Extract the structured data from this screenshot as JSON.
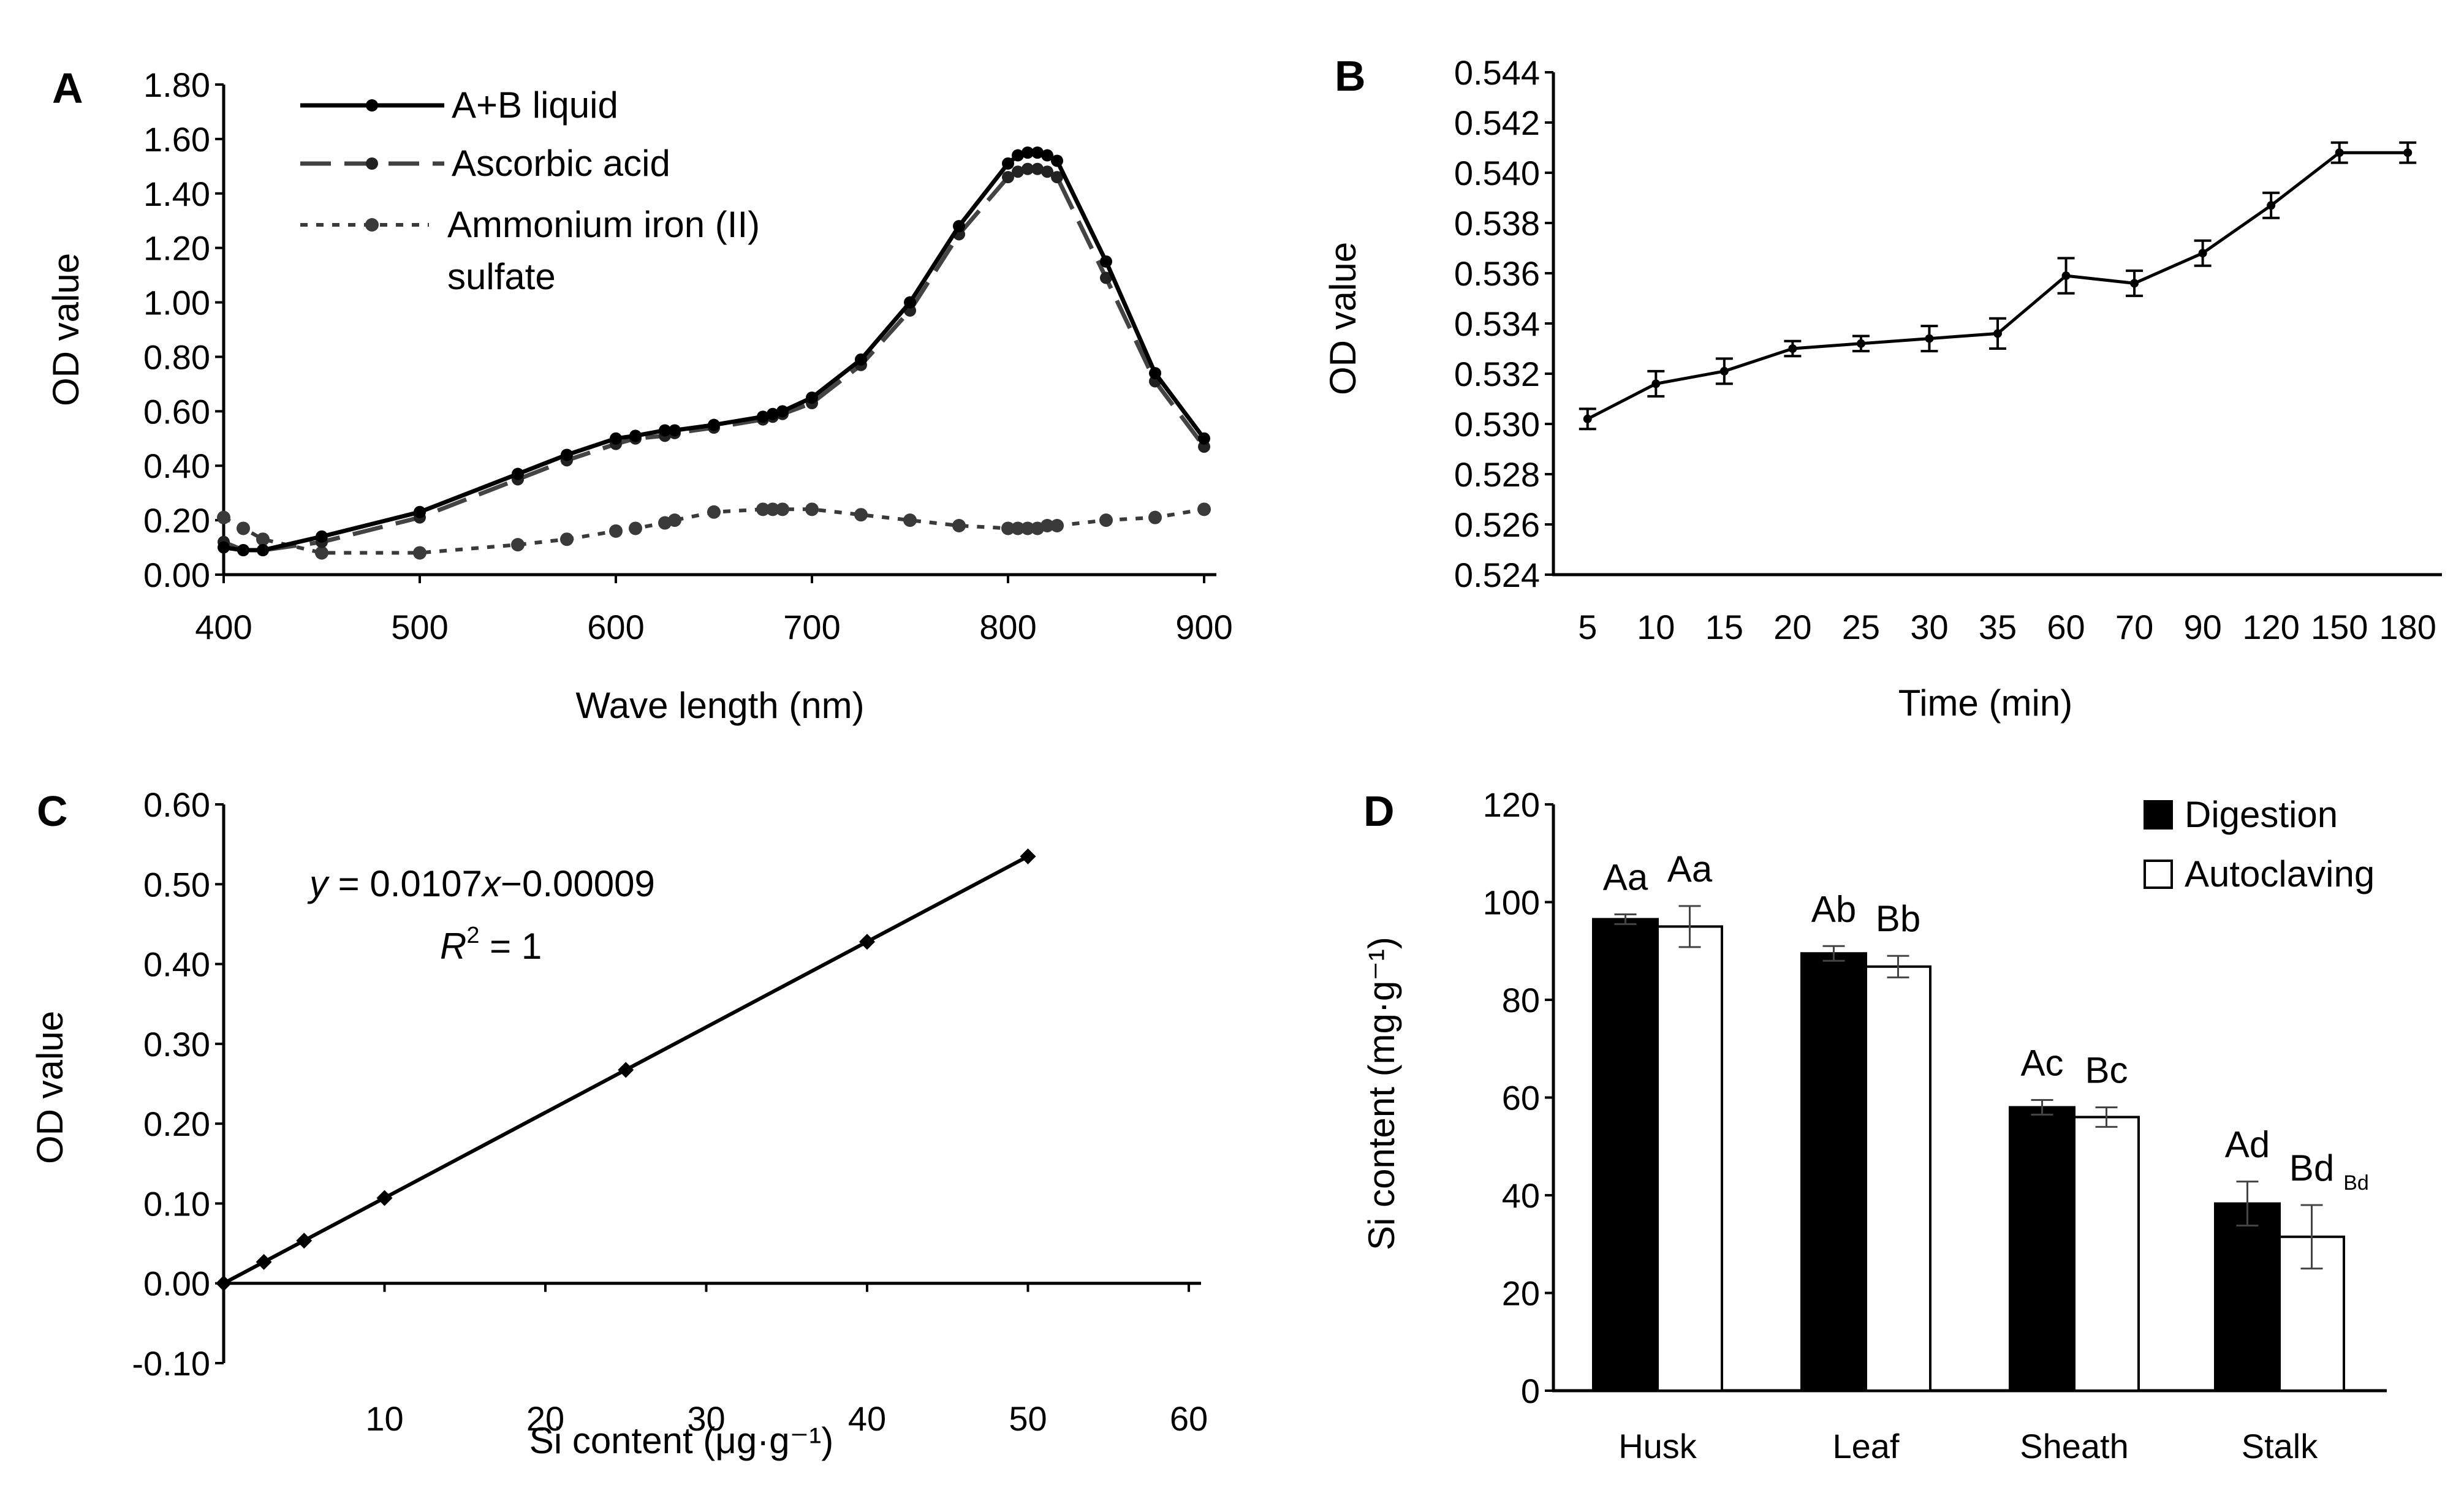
{
  "panels": [
    {
      "label": "A",
      "chart_data": {
        "type": "line",
        "xlabel": "Wave length (nm)",
        "ylabel": "OD  value",
        "xlim": [
          400,
          900
        ],
        "ylim": [
          0,
          1.8
        ],
        "x_ticks": [
          "400",
          "500",
          "600",
          "700",
          "800",
          "900"
        ],
        "y_ticks": [
          "0.00",
          "0.20",
          "0.40",
          "0.60",
          "0.80",
          "1.00",
          "1.20",
          "1.40",
          "1.60",
          "1.80"
        ],
        "legend_position": "top-left",
        "series": [
          {
            "name": "A+B liquid",
            "x": [
              400,
              410,
              420,
              450,
              500,
              550,
              575,
              600,
              610,
              625,
              630,
              650,
              675,
              680,
              685,
              700,
              725,
              750,
              775,
              800,
              805,
              810,
              815,
              820,
              825,
              850,
              875,
              900
            ],
            "y": [
              0.1,
              0.09,
              0.09,
              0.14,
              0.23,
              0.37,
              0.44,
              0.5,
              0.51,
              0.53,
              0.53,
              0.55,
              0.58,
              0.59,
              0.6,
              0.65,
              0.79,
              1.0,
              1.28,
              1.51,
              1.54,
              1.55,
              1.55,
              1.54,
              1.52,
              1.15,
              0.74,
              0.5
            ]
          },
          {
            "name": "Ascorbic  acid",
            "x": [
              400,
              410,
              420,
              450,
              500,
              550,
              575,
              600,
              610,
              625,
              630,
              650,
              675,
              680,
              685,
              700,
              725,
              750,
              775,
              800,
              805,
              810,
              815,
              820,
              825,
              850,
              875,
              900
            ],
            "y": [
              0.12,
              0.09,
              0.09,
              0.12,
              0.21,
              0.35,
              0.42,
              0.48,
              0.5,
              0.51,
              0.52,
              0.54,
              0.57,
              0.58,
              0.59,
              0.63,
              0.77,
              0.97,
              1.25,
              1.46,
              1.48,
              1.49,
              1.49,
              1.48,
              1.46,
              1.09,
              0.71,
              0.47
            ]
          },
          {
            "name": "Ammonium iron (II) sulfate",
            "name_lines": [
              "Ammonium iron (II)",
              "sulfate"
            ],
            "x": [
              400,
              410,
              420,
              450,
              500,
              550,
              575,
              600,
              610,
              625,
              630,
              650,
              675,
              680,
              685,
              700,
              725,
              750,
              775,
              800,
              805,
              810,
              815,
              820,
              825,
              850,
              875,
              900
            ],
            "y": [
              0.21,
              0.17,
              0.13,
              0.08,
              0.08,
              0.11,
              0.13,
              0.16,
              0.17,
              0.19,
              0.2,
              0.23,
              0.24,
              0.24,
              0.24,
              0.24,
              0.22,
              0.2,
              0.18,
              0.17,
              0.17,
              0.17,
              0.17,
              0.18,
              0.18,
              0.2,
              0.21,
              0.24
            ]
          }
        ]
      }
    },
    {
      "label": "B",
      "chart_data": {
        "type": "line",
        "xlabel": "Time (min)",
        "ylabel": "OD value",
        "ylim": [
          0.524,
          0.544
        ],
        "y_ticks": [
          "0.524",
          "0.526",
          "0.528",
          "0.530",
          "0.532",
          "0.534",
          "0.536",
          "0.538",
          "0.540",
          "0.542",
          "0.544"
        ],
        "categories": [
          "5",
          "10",
          "15",
          "20",
          "25",
          "30",
          "35",
          "60",
          "70",
          "90",
          "120",
          "150",
          "180"
        ],
        "series": [
          {
            "values": [
              0.5302,
              0.5316,
              0.5321,
              0.533,
              0.5332,
              0.5334,
              0.5336,
              0.5359,
              0.5356,
              0.5368,
              0.5387,
              0.5408,
              0.5408
            ],
            "error": [
              0.0004,
              0.0005,
              0.0005,
              0.0003,
              0.0003,
              0.0005,
              0.0006,
              0.0007,
              0.0005,
              0.0005,
              0.0005,
              0.0004,
              0.0004
            ]
          }
        ]
      }
    },
    {
      "label": "C",
      "chart_data": {
        "type": "scatter",
        "xlabel": "Si content (μg·g⁻¹)",
        "ylabel": "OD value",
        "xlim": [
          0,
          60
        ],
        "ylim": [
          -0.1,
          0.6
        ],
        "x_ticks": [
          "10",
          "20",
          "30",
          "40",
          "50",
          "60"
        ],
        "y_ticks": [
          "-0.10",
          "0.00",
          "0.10",
          "0.20",
          "0.30",
          "0.40",
          "0.50",
          "0.60"
        ],
        "series": [
          {
            "x": [
              0,
              2.5,
              5,
              10,
              25,
              40,
              50
            ],
            "y": [
              0.0,
              0.0267,
              0.0534,
              0.1069,
              0.2674,
              0.4279,
              0.5349
            ]
          }
        ],
        "annotations": {
          "eq_y": "y",
          "eq_rest": " = 0.0107",
          "eq_x": "x",
          "eq_tail": "−0.00009",
          "r2_r": "R",
          "r2_exp": "2",
          "r2_rest": " = 1"
        }
      }
    },
    {
      "label": "D",
      "chart_data": {
        "type": "bar",
        "ylabel": "Si content  (mg·g⁻¹)",
        "ylim": [
          0,
          120
        ],
        "y_ticks": [
          "0",
          "20",
          "40",
          "60",
          "80",
          "100",
          "120"
        ],
        "categories": [
          "Husk",
          "Leaf",
          "Sheath",
          "Stalk"
        ],
        "legend_position": "top-right",
        "series": [
          {
            "name": "Digestion",
            "values": [
              96.5,
              89.5,
              58.0,
              38.3
            ],
            "error": [
              1.0,
              1.5,
              1.5,
              4.5
            ],
            "labels": [
              "Aa",
              "Ab",
              "Ac",
              "Ad"
            ]
          },
          {
            "name": "Autoclaving",
            "values": [
              95.0,
              86.8,
              56.0,
              31.5
            ],
            "error": [
              4.2,
              2.2,
              2.0,
              6.5
            ],
            "labels": [
              "Aa",
              "Bb",
              "Bc",
              "Bd"
            ]
          }
        ],
        "annotations": {
          "small_label": "Bd"
        }
      }
    }
  ]
}
